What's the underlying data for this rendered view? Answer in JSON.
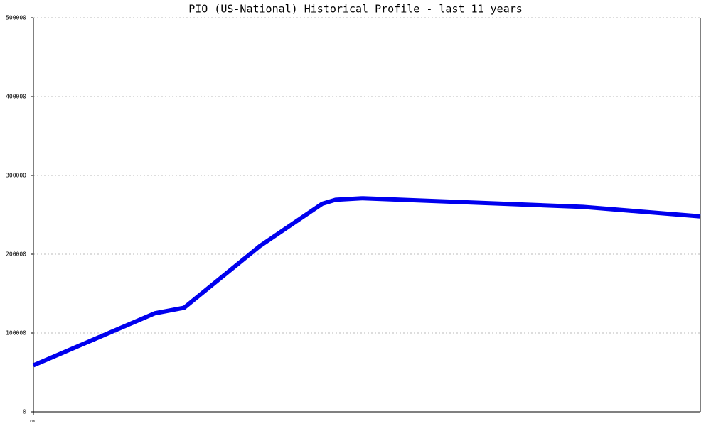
{
  "chart_data": {
    "type": "line",
    "title": "PIO (US-National) Historical Profile - last 11 years",
    "x": [
      0,
      18.2,
      22.6,
      33.9,
      43.3,
      45.3,
      49.4,
      82.4,
      100
    ],
    "xlim": [
      0,
      100
    ],
    "xticks": [
      0
    ],
    "series": [
      {
        "color": "#0000ee",
        "values": [
          59000,
          125000,
          132000,
          210000,
          264000,
          269000,
          271000,
          260000,
          248000
        ]
      }
    ],
    "ylim": [
      0,
      500000
    ],
    "yticks": [
      0,
      100000,
      200000,
      300000,
      400000,
      500000
    ],
    "grid": true
  }
}
